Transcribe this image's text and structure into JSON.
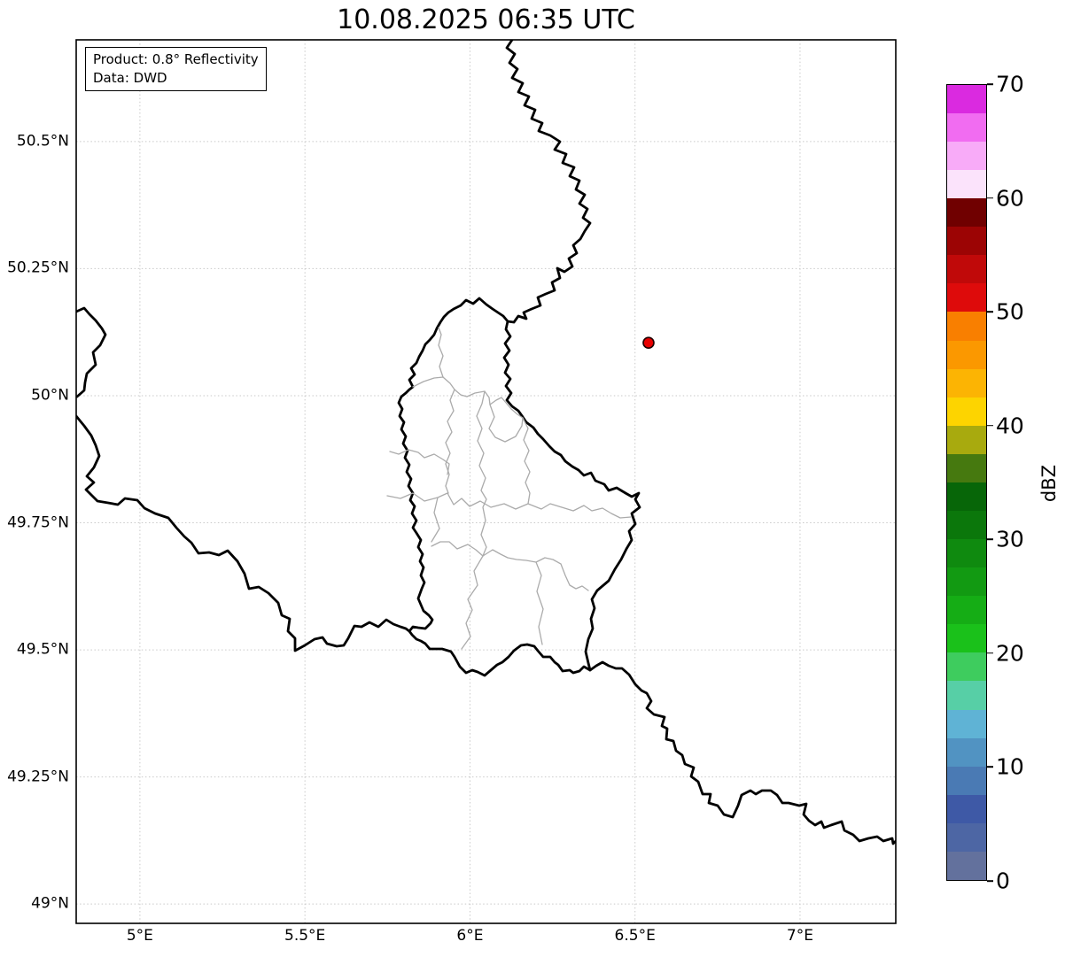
{
  "title": "10.08.2025 06:35 UTC",
  "info_box": {
    "line1": "Product: 0.8° Reflectivity",
    "line2": "Data: DWD"
  },
  "map": {
    "extent": {
      "lon_min": 4.807,
      "lon_max": 7.29,
      "lat_min": 48.962,
      "lat_max": 50.7
    },
    "x_ticks": [
      {
        "lon": 5.0,
        "label": "5°E"
      },
      {
        "lon": 5.5,
        "label": "5.5°E"
      },
      {
        "lon": 6.0,
        "label": "6°E"
      },
      {
        "lon": 6.5,
        "label": "6.5°E"
      },
      {
        "lon": 7.0,
        "label": "7°E"
      }
    ],
    "y_ticks": [
      {
        "lat": 50.5,
        "label": "50.5°N"
      },
      {
        "lat": 50.25,
        "label": "50.25°N"
      },
      {
        "lat": 50.0,
        "label": "50°N"
      },
      {
        "lat": 49.75,
        "label": "49.75°N"
      },
      {
        "lat": 49.5,
        "label": "49.5°N"
      },
      {
        "lat": 49.25,
        "label": "49.25°N"
      },
      {
        "lat": 49.0,
        "label": "49°N"
      }
    ],
    "marker": {
      "name": "radar-site",
      "lon": 6.541,
      "lat": 50.104,
      "fill": "#e80000",
      "stroke": "#200000"
    },
    "grid_color": "#c9c9c9",
    "border_color": "#000000",
    "admin1_color": "#ababab"
  },
  "colorbar": {
    "label": "dBZ",
    "min": 0,
    "max": 70,
    "step": 2.5,
    "ticks": [
      0,
      10,
      20,
      30,
      40,
      50,
      60,
      70
    ],
    "colors_bottom_to_top": [
      "#63719d",
      "#4d66a4",
      "#3e59a6",
      "#4a7ab4",
      "#5193c2",
      "#5fb3d5",
      "#57cfa6",
      "#3ecc5e",
      "#1ac11a",
      "#15ad15",
      "#129a12",
      "#0f8a0f",
      "#0b770b",
      "#076608",
      "#46790f",
      "#a8aa0e",
      "#fdd400",
      "#fcb403",
      "#fb9800",
      "#f97f00",
      "#de0b0b",
      "#c00909",
      "#9c0404",
      "#700000",
      "#fbe3fb",
      "#f8abf8",
      "#f16cf1",
      "#da2ae0"
    ]
  }
}
